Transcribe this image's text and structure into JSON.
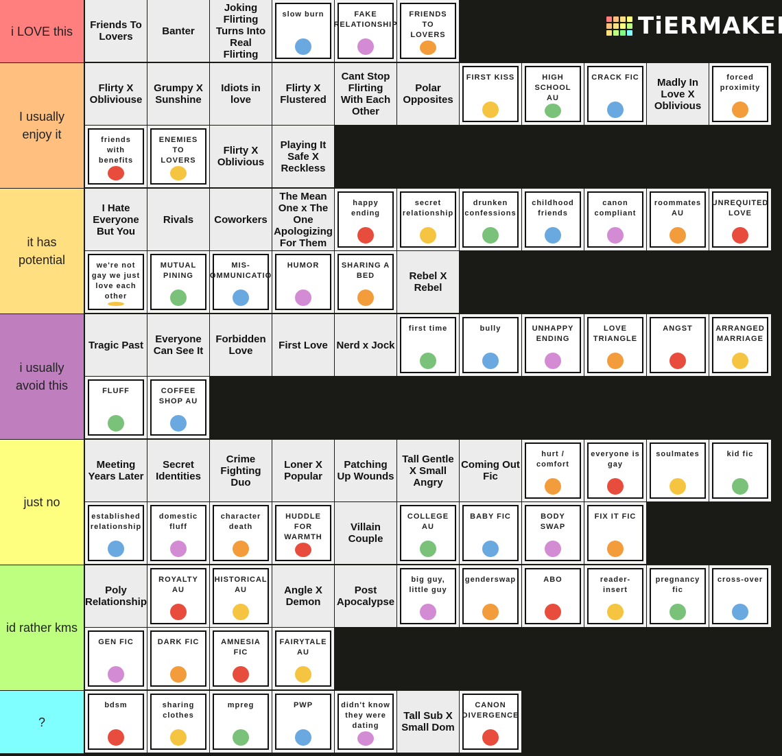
{
  "logo": "TiERMAKER",
  "tiers": [
    {
      "label": "i LOVE this",
      "color": "#ff7f7f",
      "items": [
        {
          "text": "Friends To Lovers"
        },
        {
          "text": "Banter"
        },
        {
          "text": "Joking Flirting Turns Into Real Flirting"
        },
        {
          "text": "slow burn",
          "boxed": true
        },
        {
          "text": "FAKE RELATIONSHIP",
          "boxed": true
        },
        {
          "text": "FRIENDS TO LOVERS",
          "boxed": true
        }
      ]
    },
    {
      "label": "I usually enjoy it",
      "color": "#ffbf7f",
      "items": [
        {
          "text": "Flirty X Obliviouse"
        },
        {
          "text": "Grumpy X Sunshine"
        },
        {
          "text": "Idiots in love"
        },
        {
          "text": "Flirty X Flustered"
        },
        {
          "text": "Cant Stop Flirting With Each Other"
        },
        {
          "text": "Polar Opposites"
        },
        {
          "text": "FIRST KISS",
          "boxed": true
        },
        {
          "text": "HIGH SCHOOL AU",
          "boxed": true
        },
        {
          "text": "CRACK FIC",
          "boxed": true
        },
        {
          "text": "Madly In Love X Oblivious"
        },
        {
          "text": "forced proximity",
          "boxed": true
        },
        {
          "text": "friends with benefits",
          "boxed": true
        },
        {
          "text": "ENEMIES TO LOVERS",
          "boxed": true
        },
        {
          "text": "Flirty X Oblivious"
        },
        {
          "text": "Playing It Safe X Reckless"
        }
      ]
    },
    {
      "label": "it has potential",
      "color": "#ffdf7f",
      "items": [
        {
          "text": "I Hate Everyone But You"
        },
        {
          "text": "Rivals"
        },
        {
          "text": "Coworkers"
        },
        {
          "text": "The Mean One x The One Apologizing For Them"
        },
        {
          "text": "happy ending",
          "boxed": true
        },
        {
          "text": "secret relationship",
          "boxed": true
        },
        {
          "text": "drunken confessions",
          "boxed": true
        },
        {
          "text": "childhood friends",
          "boxed": true
        },
        {
          "text": "canon compliant",
          "boxed": true
        },
        {
          "text": "roommates AU",
          "boxed": true
        },
        {
          "text": "UNREQUITED LOVE",
          "boxed": true
        },
        {
          "text": "we're not gay we just love each other",
          "boxed": true
        },
        {
          "text": "MUTUAL PINING",
          "boxed": true
        },
        {
          "text": "MIS-COMMUNICATION",
          "boxed": true
        },
        {
          "text": "HUMOR",
          "boxed": true
        },
        {
          "text": "SHARING A BED",
          "boxed": true
        },
        {
          "text": "Rebel X Rebel"
        }
      ]
    },
    {
      "label": "i usually avoid this",
      "color": "#bf7fbf",
      "items": [
        {
          "text": "Tragic Past"
        },
        {
          "text": "Everyone Can See It"
        },
        {
          "text": "Forbidden Love"
        },
        {
          "text": "First Love"
        },
        {
          "text": "Nerd x Jock"
        },
        {
          "text": "first time",
          "boxed": true
        },
        {
          "text": "bully",
          "boxed": true
        },
        {
          "text": "UNHAPPY ENDING",
          "boxed": true
        },
        {
          "text": "LOVE TRIANGLE",
          "boxed": true
        },
        {
          "text": "ANGST",
          "boxed": true
        },
        {
          "text": "ARRANGED MARRIAGE",
          "boxed": true
        },
        {
          "text": "FLUFF",
          "boxed": true
        },
        {
          "text": "COFFEE SHOP AU",
          "boxed": true
        }
      ]
    },
    {
      "label": "just no",
      "color": "#ffff7f",
      "items": [
        {
          "text": "Meeting Years Later"
        },
        {
          "text": "Secret Identities"
        },
        {
          "text": "Crime Fighting Duo"
        },
        {
          "text": "Loner X Popular"
        },
        {
          "text": "Patching Up Wounds"
        },
        {
          "text": "Tall Gentle X Small Angry"
        },
        {
          "text": "Coming Out Fic"
        },
        {
          "text": "hurt / comfort",
          "boxed": true
        },
        {
          "text": "everyone is gay",
          "boxed": true
        },
        {
          "text": "soulmates",
          "boxed": true
        },
        {
          "text": "kid fic",
          "boxed": true
        },
        {
          "text": "established relationship",
          "boxed": true
        },
        {
          "text": "domestic fluff",
          "boxed": true
        },
        {
          "text": "character death",
          "boxed": true
        },
        {
          "text": "HUDDLE FOR WARMTH",
          "boxed": true
        },
        {
          "text": "Villain Couple"
        },
        {
          "text": "COLLEGE AU",
          "boxed": true
        },
        {
          "text": "BABY FIC",
          "boxed": true
        },
        {
          "text": "BODY SWAP",
          "boxed": true
        },
        {
          "text": "FIX IT FIC",
          "boxed": true
        }
      ]
    },
    {
      "label": "id rather kms",
      "color": "#bfff7f",
      "items": [
        {
          "text": "Poly Relationship"
        },
        {
          "text": "ROYALTY AU",
          "boxed": true
        },
        {
          "text": "HISTORICAL AU",
          "boxed": true
        },
        {
          "text": "Angle X Demon"
        },
        {
          "text": "Post Apocalypse"
        },
        {
          "text": "big guy, little guy",
          "boxed": true
        },
        {
          "text": "genderswap",
          "boxed": true
        },
        {
          "text": "ABO",
          "boxed": true
        },
        {
          "text": "reader-insert",
          "boxed": true
        },
        {
          "text": "pregnancy fic",
          "boxed": true
        },
        {
          "text": "cross-over",
          "boxed": true
        },
        {
          "text": "GEN FIC",
          "boxed": true
        },
        {
          "text": "DARK FIC",
          "boxed": true
        },
        {
          "text": "AMNESIA FIC",
          "boxed": true
        },
        {
          "text": "FAIRYTALE AU",
          "boxed": true
        }
      ]
    },
    {
      "label": "?",
      "color": "#7fffff",
      "items": [
        {
          "text": "bdsm",
          "boxed": true
        },
        {
          "text": "sharing clothes",
          "boxed": true
        },
        {
          "text": "mpreg",
          "boxed": true
        },
        {
          "text": "PWP",
          "boxed": true
        },
        {
          "text": "didn't know they were dating",
          "boxed": true
        },
        {
          "text": "Tall Sub X Small Dom"
        },
        {
          "text": "CANON DIVERGENCE",
          "boxed": true
        }
      ]
    }
  ]
}
